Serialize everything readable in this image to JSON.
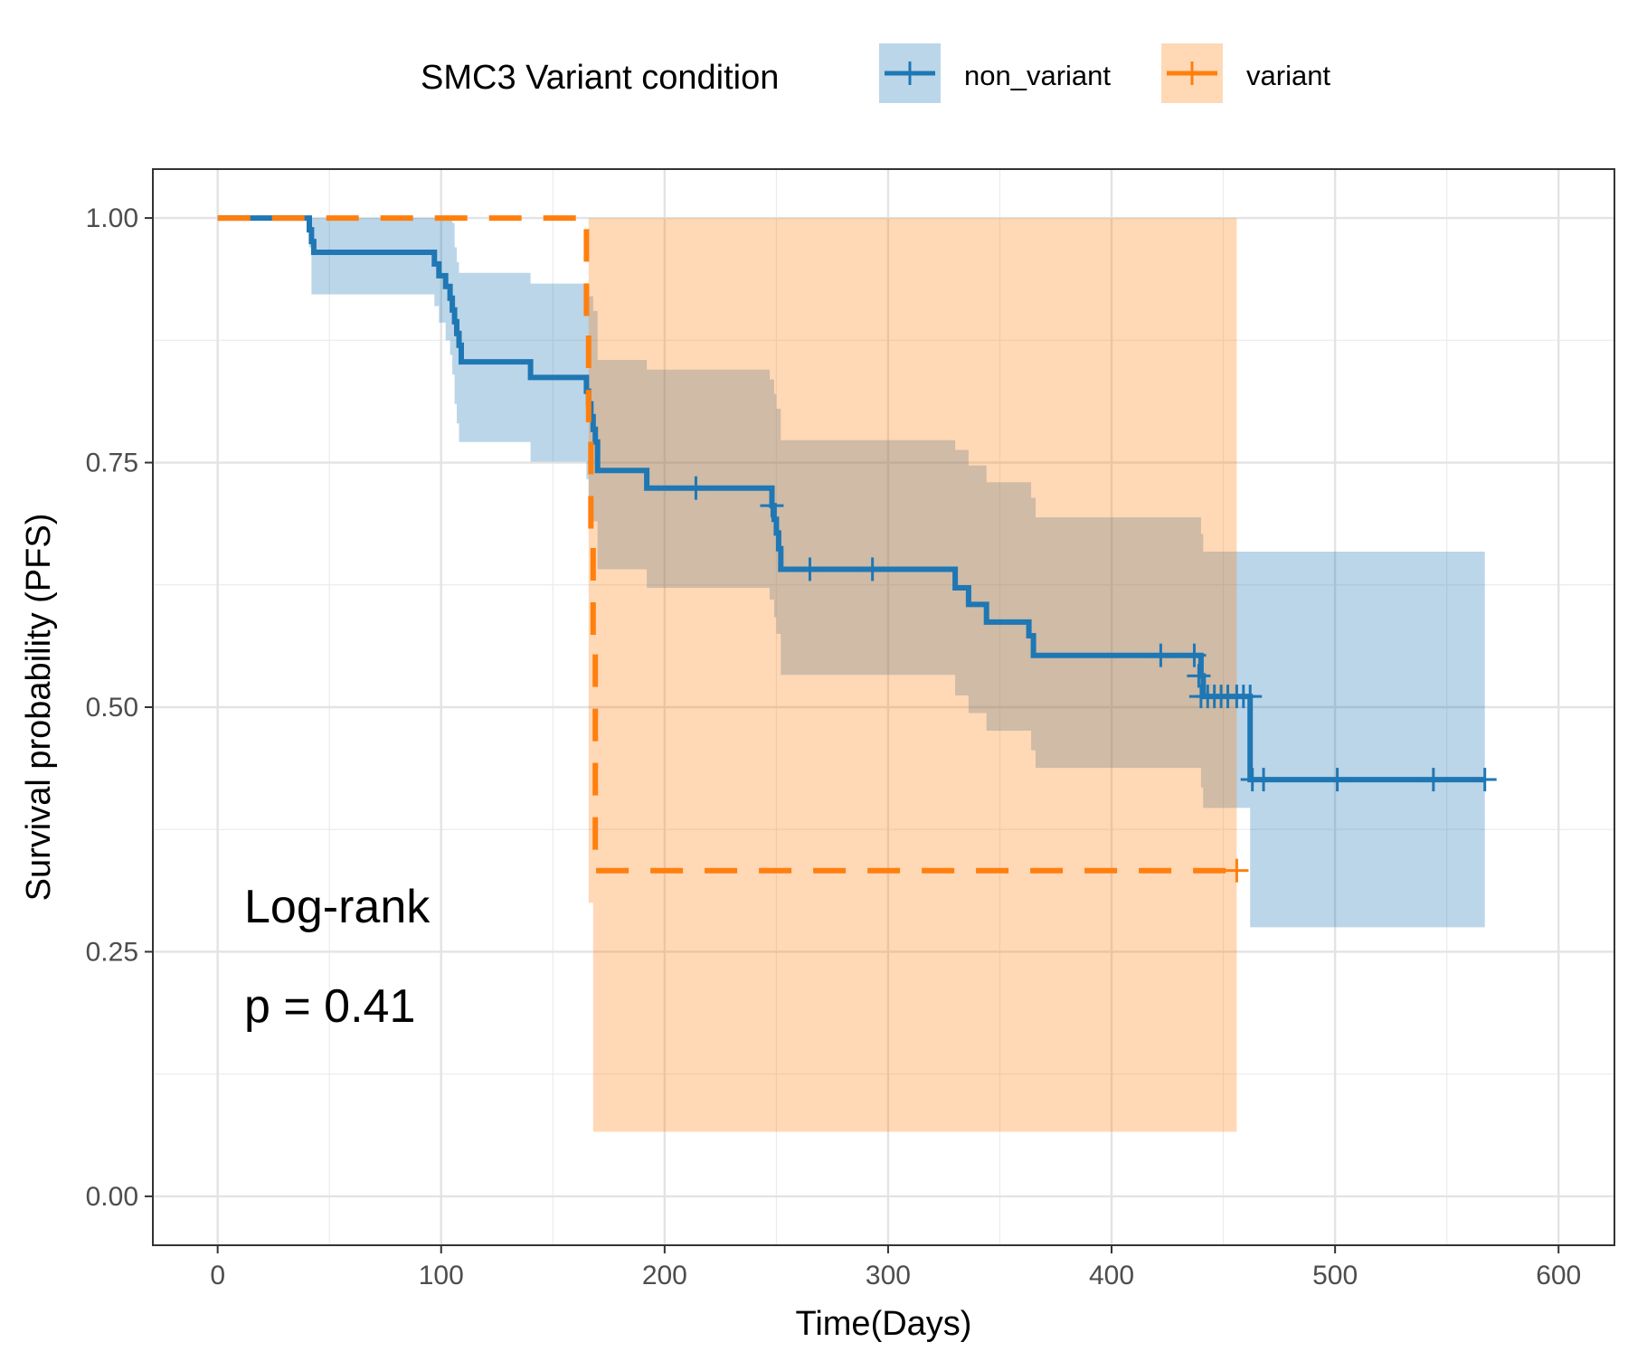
{
  "chart_data": {
    "type": "line",
    "subtype": "kaplan-meier",
    "title": "",
    "xlabel": "Time(Days)",
    "ylabel": "Survival probability (PFS)",
    "xlim": [
      -29,
      625
    ],
    "ylim": [
      -0.05,
      1.05
    ],
    "x_ticks": [
      0,
      100,
      200,
      300,
      400,
      500,
      600
    ],
    "x_tick_labels": [
      "0",
      "100",
      "200",
      "300",
      "400",
      "500",
      "600"
    ],
    "y_ticks": [
      0,
      0.25,
      0.5,
      0.75,
      1.0
    ],
    "y_tick_labels": [
      "0.00",
      "0.25",
      "0.50",
      "0.75",
      "1.00"
    ],
    "grid": true,
    "legend": {
      "title": "SMC3 Variant condition",
      "placement": "top",
      "entries": [
        "non_variant",
        "variant"
      ]
    },
    "annotations": [
      "Log-rank",
      "p = 0.41"
    ],
    "series": [
      {
        "name": "non_variant",
        "color": "#1f77b4",
        "line_style": "solid",
        "steps": [
          [
            0,
            1.0
          ],
          [
            41,
            0.988
          ],
          [
            42,
            0.976
          ],
          [
            43,
            0.965
          ],
          [
            97,
            0.953
          ],
          [
            99,
            0.941
          ],
          [
            102,
            0.93
          ],
          [
            104,
            0.918
          ],
          [
            105,
            0.906
          ],
          [
            106,
            0.894
          ],
          [
            107,
            0.882
          ],
          [
            108,
            0.87
          ],
          [
            109,
            0.853
          ],
          [
            140,
            0.837
          ],
          [
            165,
            0.823
          ],
          [
            166,
            0.81
          ],
          [
            167,
            0.797
          ],
          [
            168,
            0.784
          ],
          [
            169,
            0.771
          ],
          [
            170,
            0.742
          ],
          [
            192,
            0.724
          ],
          [
            248,
            0.706
          ],
          [
            249,
            0.692
          ],
          [
            250,
            0.678
          ],
          [
            251,
            0.662
          ],
          [
            252,
            0.641
          ],
          [
            330,
            0.622
          ],
          [
            336,
            0.605
          ],
          [
            344,
            0.587
          ],
          [
            363,
            0.573
          ],
          [
            365,
            0.553
          ],
          [
            440,
            0.532
          ],
          [
            441,
            0.511
          ],
          [
            462,
            0.426
          ],
          [
            567,
            0.426
          ]
        ],
        "ci": [
          [
            0,
            1.0,
            1.0
          ],
          [
            41,
            0.97,
            1.0
          ],
          [
            42,
            0.922,
            1.0
          ],
          [
            97,
            0.91,
            1.0
          ],
          [
            99,
            0.893,
            1.0
          ],
          [
            102,
            0.875,
            1.0
          ],
          [
            104,
            0.86,
            1.0
          ],
          [
            105,
            0.84,
            0.995
          ],
          [
            106,
            0.81,
            0.97
          ],
          [
            107,
            0.79,
            0.955
          ],
          [
            108,
            0.771,
            0.944
          ],
          [
            140,
            0.751,
            0.933
          ],
          [
            165,
            0.733,
            0.933
          ],
          [
            166,
            0.71,
            0.92
          ],
          [
            168,
            0.69,
            0.905
          ],
          [
            170,
            0.641,
            0.855
          ],
          [
            192,
            0.622,
            0.845
          ],
          [
            247,
            0.61,
            0.835
          ],
          [
            249,
            0.592,
            0.82
          ],
          [
            250,
            0.575,
            0.805
          ],
          [
            252,
            0.533,
            0.773
          ],
          [
            330,
            0.512,
            0.763
          ],
          [
            336,
            0.494,
            0.747
          ],
          [
            344,
            0.476,
            0.73
          ],
          [
            364,
            0.456,
            0.714
          ],
          [
            366,
            0.438,
            0.694
          ],
          [
            440,
            0.418,
            0.677
          ],
          [
            441,
            0.397,
            0.659
          ],
          [
            462,
            0.275,
            0.659
          ],
          [
            567,
            0.275,
            0.659
          ]
        ],
        "censored": [
          [
            214,
            0.724
          ],
          [
            248,
            0.706
          ],
          [
            265,
            0.641
          ],
          [
            293,
            0.641
          ],
          [
            422,
            0.553
          ],
          [
            437,
            0.553
          ],
          [
            439,
            0.532
          ],
          [
            440,
            0.511
          ],
          [
            443,
            0.511
          ],
          [
            446,
            0.511
          ],
          [
            449,
            0.511
          ],
          [
            452,
            0.511
          ],
          [
            456,
            0.511
          ],
          [
            459,
            0.511
          ],
          [
            462,
            0.511
          ],
          [
            463,
            0.426
          ],
          [
            468,
            0.426
          ],
          [
            501,
            0.426
          ],
          [
            544,
            0.426
          ],
          [
            567,
            0.426
          ]
        ]
      },
      {
        "name": "variant",
        "color": "#ff7f0e",
        "line_style": "dashed",
        "steps": [
          [
            0,
            1.0
          ],
          [
            165,
            0.889
          ],
          [
            166,
            0.778
          ],
          [
            167,
            0.667
          ],
          [
            168,
            0.556
          ],
          [
            169,
            0.333
          ],
          [
            456,
            0.333
          ]
        ],
        "ci": [
          [
            0,
            1.0,
            1.0
          ],
          [
            166,
            0.3,
            1.0
          ],
          [
            168,
            0.066,
            1.0
          ],
          [
            456,
            0.066,
            1.0
          ]
        ],
        "censored": [
          [
            456,
            0.333
          ]
        ]
      }
    ]
  }
}
